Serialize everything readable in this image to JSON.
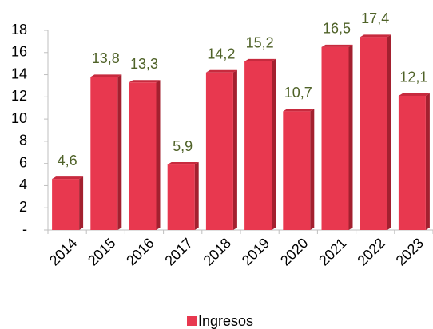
{
  "chart_data": {
    "type": "bar",
    "categories": [
      "2014",
      "2015",
      "2016",
      "2017",
      "2018",
      "2019",
      "2020",
      "2021",
      "2022",
      "2023"
    ],
    "series": [
      {
        "name": "Ingresos",
        "color": "#e8384f",
        "values": [
          4.6,
          13.8,
          13.3,
          5.9,
          14.2,
          15.2,
          10.7,
          16.5,
          17.4,
          12.1
        ],
        "value_labels": [
          "4,6",
          "13,8",
          "13,3",
          "5,9",
          "14,2",
          "15,2",
          "10,7",
          "16,5",
          "17,4",
          "12,1"
        ]
      }
    ],
    "ylim": [
      0,
      18
    ],
    "yticks": [
      {
        "value": 0,
        "label": "-"
      },
      2,
      4,
      6,
      8,
      10,
      12,
      14,
      16,
      18
    ],
    "grid": false,
    "legend": "bottom"
  }
}
